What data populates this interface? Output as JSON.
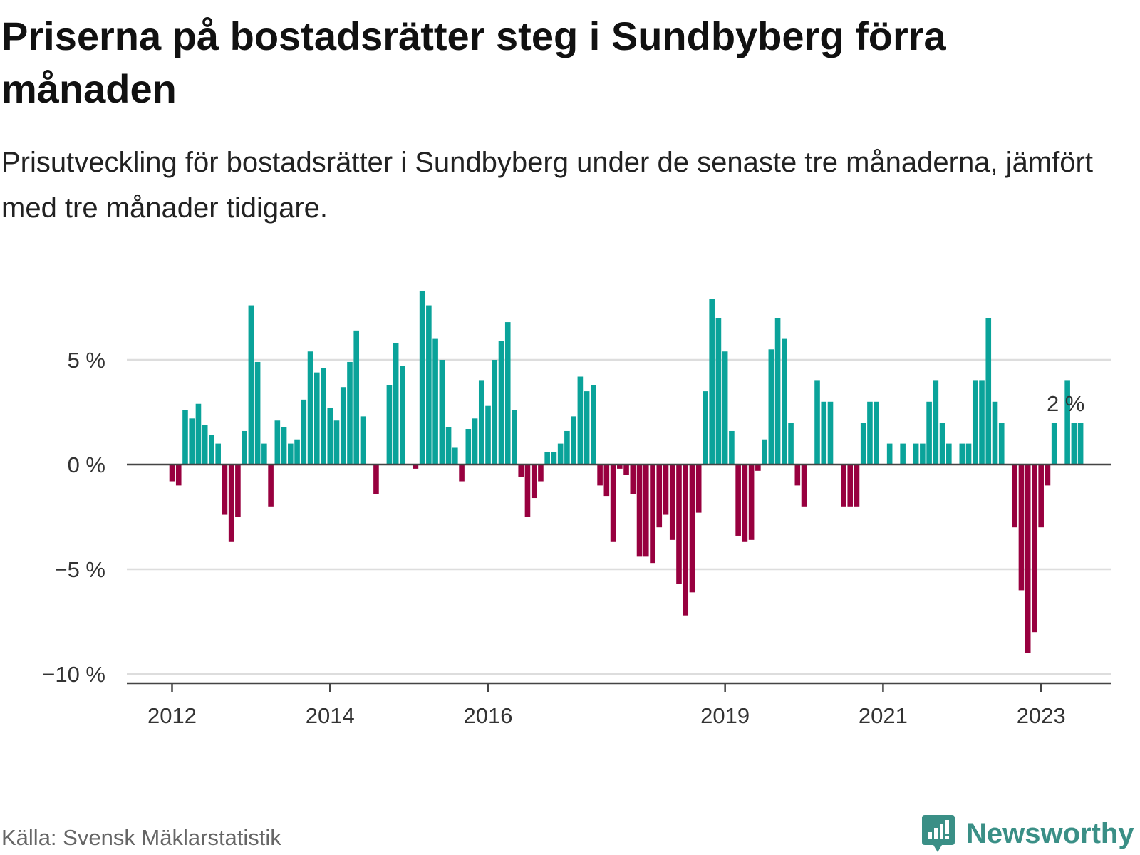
{
  "title": "Priserna på bostadsrätter steg i Sundbyberg förra månaden",
  "subtitle": "Prisutveckling för bostadsrätter i Sundbyberg under de senaste tre månaderna, jämfört med tre månader tidigare.",
  "source": "Källa: Svensk Mäklarstatistik",
  "brand": "Newsworthy",
  "colors": {
    "positive": "#0aa39a",
    "negative": "#98003f",
    "grid": "#dddddd",
    "zero_line": "#444444",
    "brand": "#3a8f86"
  },
  "chart_data": {
    "type": "bar",
    "title": "Priserna på bostadsrätter steg i Sundbyberg förra månaden",
    "xlabel": "",
    "ylabel": "",
    "ylim": [
      -10,
      8.5
    ],
    "y_ticks": [
      {
        "value": 5,
        "label": "5 %"
      },
      {
        "value": 0,
        "label": "0 %"
      },
      {
        "value": -5,
        "label": "−5 %"
      },
      {
        "value": -10,
        "label": "−10 %"
      }
    ],
    "x_ticks": [
      {
        "index": 0,
        "label": "2012"
      },
      {
        "index": 24,
        "label": "2014"
      },
      {
        "index": 48,
        "label": "2016"
      },
      {
        "index": 84,
        "label": "2019"
      },
      {
        "index": 108,
        "label": "2021"
      },
      {
        "index": 132,
        "label": "2023"
      }
    ],
    "start": "2012-01",
    "values": [
      -0.8,
      -1.0,
      2.6,
      2.2,
      2.9,
      1.9,
      1.4,
      1.0,
      -2.4,
      -3.7,
      -2.5,
      1.6,
      7.6,
      4.9,
      1.0,
      -2.0,
      2.1,
      1.8,
      1.0,
      1.2,
      3.1,
      5.4,
      4.4,
      4.6,
      2.7,
      2.1,
      3.7,
      4.9,
      6.4,
      2.3,
      0.0,
      -1.4,
      0.0,
      3.8,
      5.8,
      4.7,
      0.0,
      -0.2,
      8.3,
      7.6,
      6.0,
      5.0,
      1.8,
      0.8,
      -0.8,
      1.7,
      2.2,
      4.0,
      2.8,
      5.0,
      5.9,
      6.8,
      2.6,
      -0.6,
      -2.5,
      -1.6,
      -0.8,
      0.6,
      0.6,
      1.0,
      1.6,
      2.3,
      4.2,
      3.5,
      3.8,
      -1.0,
      -1.5,
      -3.7,
      -0.2,
      -0.5,
      -1.4,
      -4.4,
      -4.4,
      -4.7,
      -3.0,
      -2.4,
      -3.6,
      -5.7,
      -7.2,
      -6.1,
      -2.3,
      3.5,
      7.9,
      7.0,
      5.4,
      1.6,
      -3.4,
      -3.7,
      -3.6,
      -0.3,
      1.2,
      5.5,
      7.0,
      6.0,
      2.0,
      -1.0,
      -2.0,
      0.0,
      4.0,
      3.0,
      3.0,
      0.0,
      -2.0,
      -2.0,
      -2.0,
      2.0,
      3.0,
      3.0,
      0.0,
      1.0,
      0.0,
      1.0,
      0.0,
      1.0,
      1.0,
      3.0,
      4.0,
      2.0,
      1.0,
      0.0,
      1.0,
      1.0,
      4.0,
      4.0,
      7.0,
      3.0,
      2.0,
      0.0,
      -3.0,
      -6.0,
      -9.0,
      -8.0,
      -3.0,
      -1.0,
      2.0,
      0.0,
      4.0,
      2.0,
      2.0
    ],
    "annotation": {
      "index": 134,
      "label": "2 %"
    }
  }
}
